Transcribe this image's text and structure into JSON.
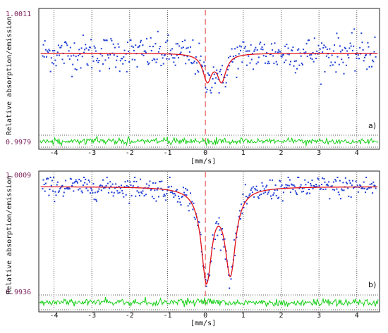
{
  "chart_data": [
    {
      "type": "scatter",
      "panel_label": "a)",
      "ylabel": "Relative absorption/emission",
      "xlabel": "[mm/s]",
      "xlim": [
        -4.4,
        4.6
      ],
      "ylim": [
        0.9979,
        1.0011
      ],
      "ylim_labels": [
        "1.0011",
        "0.9979"
      ],
      "x_ticks": [
        -4,
        -3,
        -2,
        -1,
        0,
        1,
        2,
        3,
        4
      ],
      "x_tick_labels": [
        "-4",
        "-3",
        "-2",
        "-1",
        "0",
        "1",
        "2",
        "3",
        "4"
      ],
      "vertical_dashed_line_x": 0,
      "grid": "vertical dotted at integer velocities",
      "colors": {
        "points": "#1f3fd6",
        "fit": "#e0101a",
        "residual": "#18d018",
        "zero_line": "#e85a5a"
      },
      "fit": {
        "baseline": 1.00008,
        "sites": [
          {
            "center": 0.05,
            "depth": 0.00072,
            "hwhm": 0.14
          },
          {
            "center": 0.43,
            "depth": 0.00072,
            "hwhm": 0.14
          }
        ]
      },
      "scatter_noise": 0.00024,
      "residual_band": "below main plot"
    },
    {
      "type": "scatter",
      "panel_label": "b)",
      "ylabel": "Relative absorption/emission",
      "xlabel": "[mm/s]",
      "xlim": [
        -4.4,
        4.6
      ],
      "ylim": [
        0.9936,
        1.0009
      ],
      "ylim_labels": [
        "1.0009",
        "0.9936"
      ],
      "x_ticks": [
        -4,
        -3,
        -2,
        -1,
        0,
        1,
        2,
        3,
        4
      ],
      "x_tick_labels": [
        "-4",
        "-3",
        "-2",
        "-1",
        "0",
        "1",
        "2",
        "3",
        "4"
      ],
      "vertical_dashed_line_x": 0,
      "grid": "vertical dotted at integer velocities",
      "colors": {
        "points": "#1f3fd6",
        "fit": "#e0101a",
        "residual": "#18d018",
        "zero_line": "#e85a5a"
      },
      "fit": {
        "baseline": 1.00032,
        "sites": [
          {
            "center": 0.03,
            "depth": 0.0058,
            "hwhm": 0.17
          },
          {
            "center": 0.66,
            "depth": 0.0053,
            "hwhm": 0.17
          }
        ]
      },
      "scatter_noise": 0.00035,
      "residual_band": "below main plot"
    }
  ]
}
